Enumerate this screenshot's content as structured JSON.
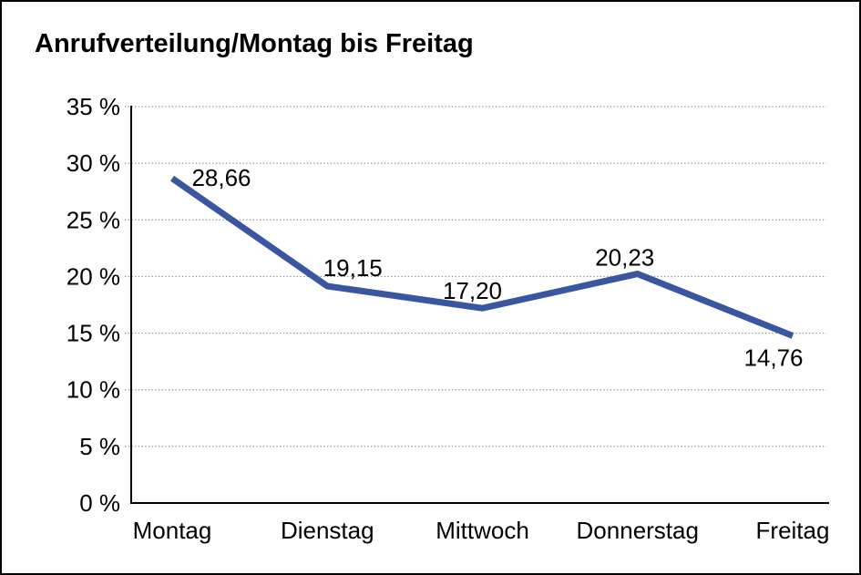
{
  "chart_data": {
    "type": "line",
    "title": "Anrufverteilung/Montag bis Freitag",
    "categories": [
      "Montag",
      "Dienstag",
      "Mittwoch",
      "Donnerstag",
      "Freitag"
    ],
    "series": [
      {
        "values": [
          28.66,
          19.15,
          17.2,
          20.23,
          14.76
        ],
        "value_labels": [
          "28,66",
          "19,15",
          "17,20",
          "20,23",
          "14,76"
        ],
        "color": "#3A56A0"
      }
    ],
    "xlabel": "",
    "ylabel": "",
    "ylim": [
      0,
      35
    ],
    "y_ticks": {
      "values": [
        0,
        5,
        10,
        15,
        20,
        25,
        30,
        35
      ],
      "labels": [
        "0 %",
        "5 %",
        "10 %",
        "15 %",
        "20 %",
        "25 %",
        "30 %",
        "35 %"
      ]
    },
    "grid": {
      "horizontal": true,
      "style": "dotted",
      "color": "#8C8C8C"
    },
    "legend": "none",
    "axis_color": "#000000",
    "text_color": "#000000",
    "background": "#FFFFFF",
    "border_color": "#000000"
  }
}
